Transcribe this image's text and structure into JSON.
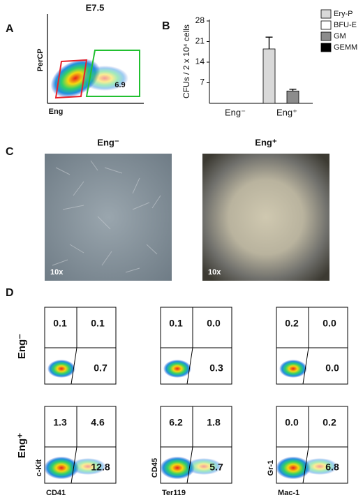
{
  "panel_a": {
    "label": "A",
    "title": "E7.5",
    "y_label": "PerCP",
    "x_label": "Eng",
    "gate_value": "6.9"
  },
  "chart_data": {
    "type": "bar",
    "panel_label": "B",
    "y_label": "CFUs / 2 x 10⁴ cells",
    "categories": [
      "Eng⁻",
      "Eng⁺"
    ],
    "series": [
      {
        "name": "Ery-P",
        "color": "#d9d9d9",
        "values": [
          0,
          18.5
        ],
        "errors": [
          null,
          4
        ]
      },
      {
        "name": "BFU-E",
        "color": "#ffffff",
        "values": [
          0,
          0
        ],
        "errors": [
          null,
          null
        ]
      },
      {
        "name": "GM",
        "color": "#8c8c8c",
        "values": [
          0,
          4.2
        ],
        "errors": [
          null,
          0.6
        ]
      },
      {
        "name": "GEMM",
        "color": "#000000",
        "values": [
          0,
          0
        ],
        "errors": [
          null,
          null
        ]
      }
    ],
    "ylim": [
      0,
      28
    ],
    "yticks": [
      7,
      14,
      21,
      28
    ],
    "legend": "right"
  },
  "panel_c": {
    "label": "C",
    "images": [
      {
        "title": "Eng⁻",
        "magnification": "10x"
      },
      {
        "title": "Eng⁺",
        "magnification": "10x"
      }
    ]
  },
  "panel_d": {
    "label": "D",
    "columns": [
      {
        "y_label": "c-Kit",
        "x_label": "CD41"
      },
      {
        "y_label": "CD45",
        "x_label": "Ter119"
      },
      {
        "y_label": "Gr-1",
        "x_label": "Mac-1"
      }
    ],
    "rows": [
      {
        "label": "Eng⁻",
        "quadrants": [
          [
            "0.1",
            "0.1",
            "0.7"
          ],
          [
            "0.1",
            "0.0",
            "0.3"
          ],
          [
            "0.2",
            "0.0",
            "0.0"
          ]
        ]
      },
      {
        "label": "Eng⁺",
        "quadrants": [
          [
            "1.3",
            "4.6",
            "12.8"
          ],
          [
            "6.2",
            "1.8",
            "5.7"
          ],
          [
            "0.0",
            "0.2",
            "6.8"
          ]
        ]
      }
    ]
  }
}
